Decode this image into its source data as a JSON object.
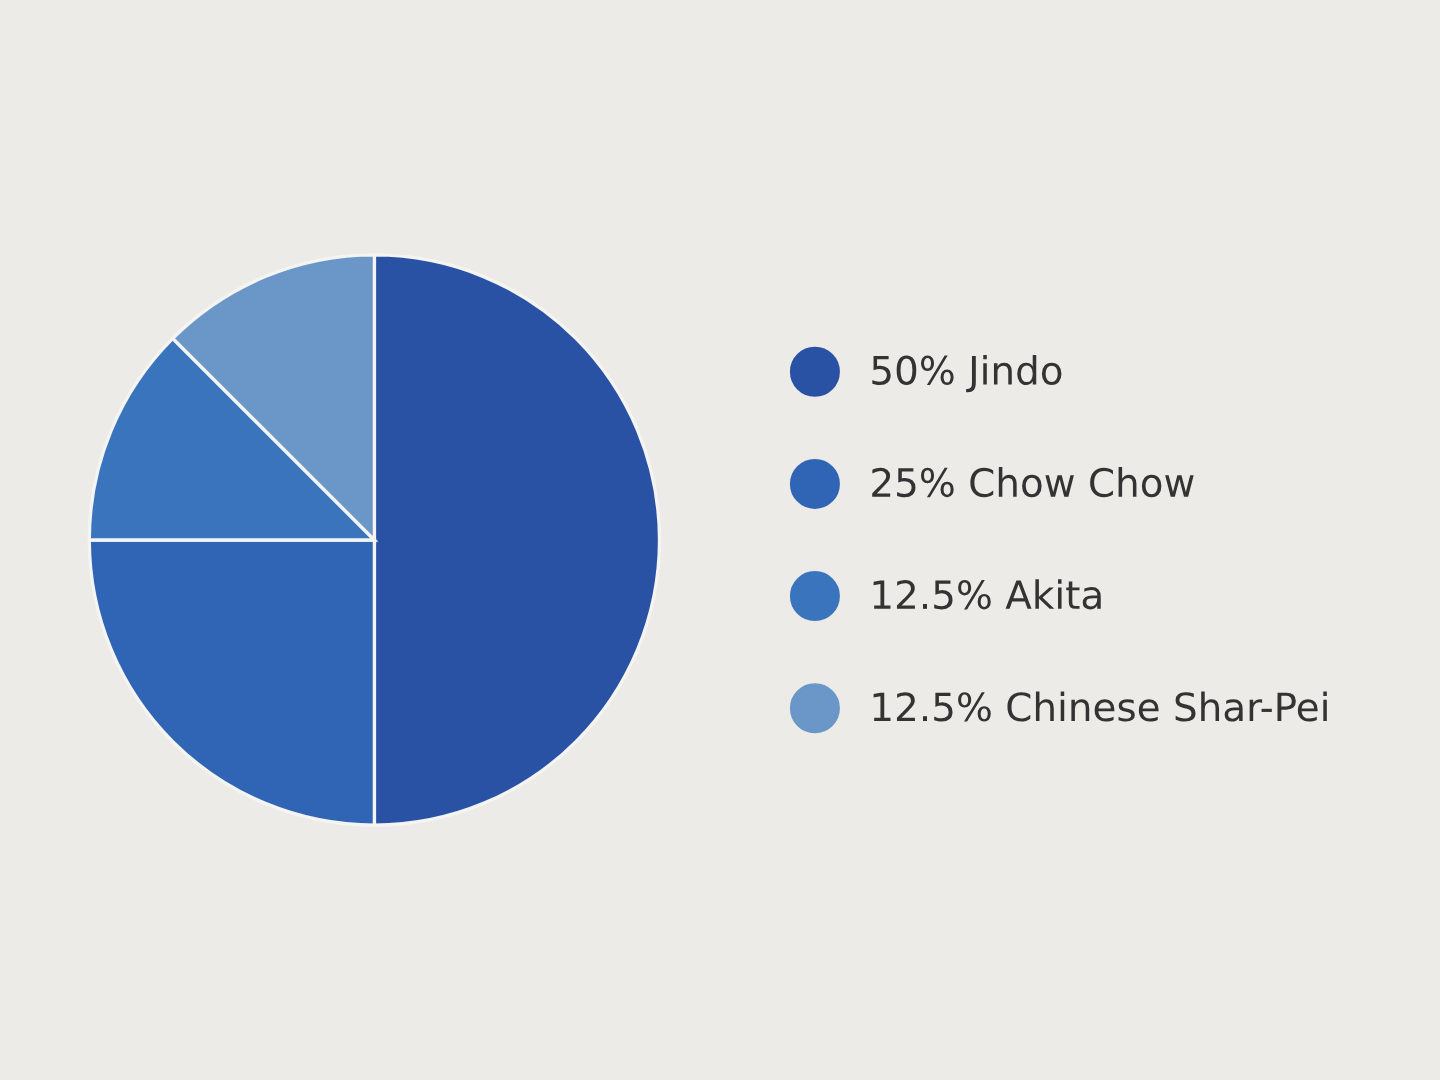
{
  "chart_data": {
    "type": "pie",
    "categories": [
      "50% Jindo",
      "25% Chow Chow",
      "12.5% Akita",
      "12.5% Chinese Shar-Pei"
    ],
    "values": [
      50,
      25,
      12.5,
      12.5
    ],
    "colors": [
      "#2a52a4",
      "#3064b4",
      "#3a74bc",
      "#6a96c8"
    ],
    "legend": "right"
  }
}
